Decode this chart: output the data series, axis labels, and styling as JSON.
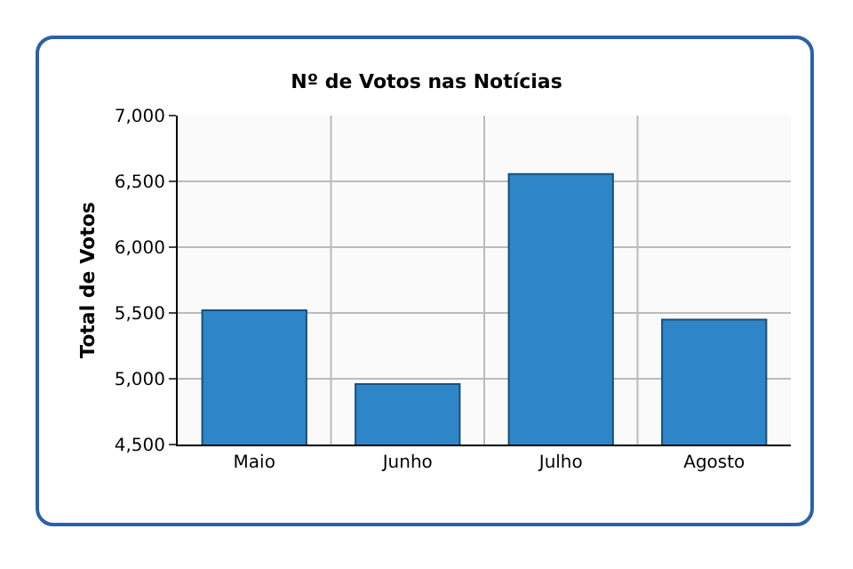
{
  "chart_data": {
    "type": "bar",
    "title": "Nº de Votos nas Notícias",
    "ylabel": "Total de Votos",
    "categories": [
      "Maio",
      "Junho",
      "Julho",
      "Agosto"
    ],
    "values": [
      5520,
      4960,
      6555,
      5450
    ],
    "color": "#2e86c8",
    "ylim": [
      4500,
      7000
    ],
    "yticks": [
      {
        "value": 4500,
        "label": "4,500"
      },
      {
        "value": 5000,
        "label": "5,000"
      },
      {
        "value": 5500,
        "label": "5,500"
      },
      {
        "value": 6000,
        "label": "6,000"
      },
      {
        "value": 6500,
        "label": "6,500"
      },
      {
        "value": 7000,
        "label": "7,000"
      }
    ],
    "grid": true
  }
}
